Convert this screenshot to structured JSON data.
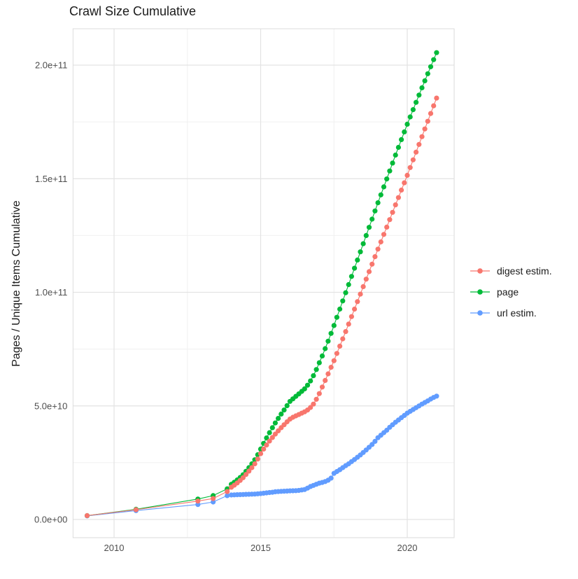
{
  "page": {
    "title": "Crawl Size Cumulative"
  },
  "chart_data": {
    "type": "line",
    "title": "Crawl Size Cumulative",
    "xlabel": "",
    "ylabel": "Pages / Unique Items Cumulative",
    "grid": true,
    "legend_position": "right",
    "xlim": [
      2008.6,
      2021.6
    ],
    "ylim_e9": [
      -8,
      216
    ],
    "x_ticks": [
      {
        "v": 2010,
        "label": "2010"
      },
      {
        "v": 2015,
        "label": "2015"
      },
      {
        "v": 2020,
        "label": "2020"
      }
    ],
    "x_minor": [
      2012.5,
      2017.5
    ],
    "y_ticks": [
      {
        "v_e9": 0,
        "label": "0.0e+00"
      },
      {
        "v_e9": 50,
        "label": "5.0e+10"
      },
      {
        "v_e9": 100,
        "label": "1.0e+11"
      },
      {
        "v_e9": 150,
        "label": "1.5e+11"
      },
      {
        "v_e9": 200,
        "label": "2.0e+11"
      }
    ],
    "y_minor_e9": [
      25,
      75,
      125,
      175
    ],
    "colors": {
      "digest": "#F8766D",
      "page": "#00BA38",
      "url": "#619CFF",
      "grid_major": "#E3E3E3",
      "grid_minor": "#F0F0F0",
      "panel_border": "#DCDCDC"
    },
    "draw_order": [
      2,
      1,
      0
    ],
    "series": [
      {
        "name": "digest estim.",
        "color": "#F8766D",
        "points_e9": [
          [
            2009.08,
            1.7
          ],
          [
            2010.75,
            4.3
          ],
          [
            2012.86,
            8.1
          ],
          [
            2013.38,
            9.2
          ],
          [
            2013.86,
            12.3
          ],
          [
            2014.0,
            14.2
          ],
          [
            2014.1,
            15.1
          ],
          [
            2014.2,
            16.1
          ],
          [
            2014.3,
            17.2
          ],
          [
            2014.4,
            18.4
          ],
          [
            2014.5,
            19.8
          ],
          [
            2014.6,
            21.3
          ],
          [
            2014.7,
            22.8
          ],
          [
            2014.8,
            24.5
          ],
          [
            2014.9,
            26.6
          ],
          [
            2015.0,
            29.0
          ],
          [
            2015.1,
            31.0
          ],
          [
            2015.2,
            32.8
          ],
          [
            2015.3,
            34.5
          ],
          [
            2015.4,
            36.1
          ],
          [
            2015.5,
            37.6
          ],
          [
            2015.6,
            39.0
          ],
          [
            2015.7,
            40.4
          ],
          [
            2015.8,
            41.7
          ],
          [
            2015.9,
            43.0
          ],
          [
            2016.0,
            44.2
          ],
          [
            2016.1,
            45.0
          ],
          [
            2016.2,
            45.6
          ],
          [
            2016.3,
            46.2
          ],
          [
            2016.4,
            46.8
          ],
          [
            2016.5,
            47.4
          ],
          [
            2016.6,
            48.2
          ],
          [
            2016.7,
            49.3
          ],
          [
            2016.8,
            50.8
          ],
          [
            2016.9,
            52.9
          ],
          [
            2017.0,
            55.4
          ],
          [
            2017.1,
            58.3
          ],
          [
            2017.2,
            61.2
          ],
          [
            2017.3,
            64.1
          ],
          [
            2017.4,
            67.0
          ],
          [
            2017.5,
            69.9
          ],
          [
            2017.6,
            73.1
          ],
          [
            2017.7,
            76.3
          ],
          [
            2017.8,
            79.5
          ],
          [
            2017.9,
            82.7
          ],
          [
            2018.0,
            86.0
          ],
          [
            2018.1,
            89.3
          ],
          [
            2018.2,
            92.6
          ],
          [
            2018.3,
            95.9
          ],
          [
            2018.4,
            99.2
          ],
          [
            2018.5,
            102.5
          ],
          [
            2018.6,
            105.8
          ],
          [
            2018.7,
            109.1
          ],
          [
            2018.8,
            112.4
          ],
          [
            2018.9,
            115.7
          ],
          [
            2019.0,
            119.0
          ],
          [
            2019.1,
            122.2
          ],
          [
            2019.2,
            125.5
          ],
          [
            2019.3,
            128.7
          ],
          [
            2019.4,
            132.0
          ],
          [
            2019.5,
            135.2
          ],
          [
            2019.6,
            138.5
          ],
          [
            2019.7,
            141.7
          ],
          [
            2019.8,
            145.0
          ],
          [
            2019.9,
            148.2
          ],
          [
            2020.0,
            151.5
          ],
          [
            2020.1,
            154.9
          ],
          [
            2020.2,
            158.3
          ],
          [
            2020.3,
            161.7
          ],
          [
            2020.4,
            165.1
          ],
          [
            2020.5,
            168.5
          ],
          [
            2020.6,
            171.9
          ],
          [
            2020.7,
            175.3
          ],
          [
            2020.8,
            178.7
          ],
          [
            2020.9,
            182.1
          ],
          [
            2021.0,
            185.5
          ]
        ]
      },
      {
        "name": "page",
        "color": "#00BA38",
        "points_e9": [
          [
            2009.08,
            1.7
          ],
          [
            2010.75,
            4.5
          ],
          [
            2012.86,
            9.0
          ],
          [
            2013.38,
            10.5
          ],
          [
            2013.86,
            13.5
          ],
          [
            2014.0,
            15.5
          ],
          [
            2014.1,
            16.4
          ],
          [
            2014.2,
            17.4
          ],
          [
            2014.3,
            18.5
          ],
          [
            2014.4,
            19.7
          ],
          [
            2014.5,
            21.2
          ],
          [
            2014.6,
            22.8
          ],
          [
            2014.7,
            24.5
          ],
          [
            2014.8,
            26.3
          ],
          [
            2014.9,
            28.5
          ],
          [
            2015.0,
            31.0
          ],
          [
            2015.1,
            33.5
          ],
          [
            2015.2,
            35.9
          ],
          [
            2015.3,
            38.2
          ],
          [
            2015.4,
            40.4
          ],
          [
            2015.5,
            42.5
          ],
          [
            2015.6,
            44.5
          ],
          [
            2015.7,
            46.4
          ],
          [
            2015.8,
            48.2
          ],
          [
            2015.9,
            50.1
          ],
          [
            2016.0,
            52.0
          ],
          [
            2016.1,
            53.1
          ],
          [
            2016.2,
            54.2
          ],
          [
            2016.3,
            55.3
          ],
          [
            2016.4,
            56.4
          ],
          [
            2016.5,
            57.5
          ],
          [
            2016.6,
            59.1
          ],
          [
            2016.7,
            61.0
          ],
          [
            2016.8,
            63.3
          ],
          [
            2016.9,
            66.0
          ],
          [
            2017.0,
            69.0
          ],
          [
            2017.1,
            72.0
          ],
          [
            2017.2,
            75.2
          ],
          [
            2017.3,
            78.5
          ],
          [
            2017.4,
            81.9
          ],
          [
            2017.5,
            85.4
          ],
          [
            2017.6,
            89.0
          ],
          [
            2017.7,
            92.6
          ],
          [
            2017.8,
            96.2
          ],
          [
            2017.9,
            99.8
          ],
          [
            2018.0,
            103.4
          ],
          [
            2018.1,
            107.0
          ],
          [
            2018.2,
            110.6
          ],
          [
            2018.3,
            114.2
          ],
          [
            2018.4,
            117.8
          ],
          [
            2018.5,
            121.4
          ],
          [
            2018.6,
            125.0
          ],
          [
            2018.7,
            128.6
          ],
          [
            2018.8,
            132.2
          ],
          [
            2018.9,
            135.8
          ],
          [
            2019.0,
            139.4
          ],
          [
            2019.1,
            142.9
          ],
          [
            2019.2,
            146.4
          ],
          [
            2019.3,
            149.9
          ],
          [
            2019.4,
            153.4
          ],
          [
            2019.5,
            156.9
          ],
          [
            2019.6,
            160.4
          ],
          [
            2019.7,
            163.8
          ],
          [
            2019.8,
            167.2
          ],
          [
            2019.9,
            170.6
          ],
          [
            2020.0,
            174.0
          ],
          [
            2020.1,
            177.2
          ],
          [
            2020.2,
            180.4
          ],
          [
            2020.3,
            183.6
          ],
          [
            2020.4,
            186.8
          ],
          [
            2020.5,
            190.0
          ],
          [
            2020.6,
            193.1
          ],
          [
            2020.7,
            196.2
          ],
          [
            2020.8,
            199.3
          ],
          [
            2020.9,
            202.4
          ],
          [
            2021.0,
            205.5
          ]
        ]
      },
      {
        "name": "url estim.",
        "color": "#619CFF",
        "points_e9": [
          [
            2009.08,
            1.6
          ],
          [
            2010.75,
            3.9
          ],
          [
            2012.86,
            6.6
          ],
          [
            2013.38,
            7.7
          ],
          [
            2013.86,
            10.5
          ],
          [
            2014.0,
            10.8
          ],
          [
            2014.1,
            10.85
          ],
          [
            2014.2,
            10.9
          ],
          [
            2014.3,
            10.95
          ],
          [
            2014.4,
            11.0
          ],
          [
            2014.5,
            11.05
          ],
          [
            2014.6,
            11.1
          ],
          [
            2014.7,
            11.15
          ],
          [
            2014.8,
            11.2
          ],
          [
            2014.9,
            11.3
          ],
          [
            2015.0,
            11.4
          ],
          [
            2015.1,
            11.55
          ],
          [
            2015.2,
            11.7
          ],
          [
            2015.3,
            11.85
          ],
          [
            2015.4,
            12.0
          ],
          [
            2015.5,
            12.2
          ],
          [
            2015.6,
            12.3
          ],
          [
            2015.7,
            12.4
          ],
          [
            2015.8,
            12.45
          ],
          [
            2015.9,
            12.5
          ],
          [
            2016.0,
            12.6
          ],
          [
            2016.1,
            12.65
          ],
          [
            2016.2,
            12.7
          ],
          [
            2016.3,
            12.8
          ],
          [
            2016.4,
            13.0
          ],
          [
            2016.5,
            13.2
          ],
          [
            2016.6,
            13.8
          ],
          [
            2016.7,
            14.5
          ],
          [
            2016.8,
            15.0
          ],
          [
            2016.9,
            15.5
          ],
          [
            2017.0,
            16.0
          ],
          [
            2017.1,
            16.3
          ],
          [
            2017.2,
            16.7
          ],
          [
            2017.3,
            17.3
          ],
          [
            2017.4,
            18.2
          ],
          [
            2017.5,
            20.3
          ],
          [
            2017.6,
            21.1
          ],
          [
            2017.7,
            21.9
          ],
          [
            2017.8,
            22.8
          ],
          [
            2017.9,
            23.7
          ],
          [
            2018.0,
            24.5
          ],
          [
            2018.1,
            25.5
          ],
          [
            2018.2,
            26.4
          ],
          [
            2018.3,
            27.4
          ],
          [
            2018.4,
            28.4
          ],
          [
            2018.5,
            29.5
          ],
          [
            2018.6,
            30.6
          ],
          [
            2018.7,
            31.8
          ],
          [
            2018.8,
            33.0
          ],
          [
            2018.9,
            34.4
          ],
          [
            2019.0,
            36.0
          ],
          [
            2019.1,
            37.1
          ],
          [
            2019.2,
            38.2
          ],
          [
            2019.3,
            39.3
          ],
          [
            2019.4,
            40.6
          ],
          [
            2019.5,
            41.7
          ],
          [
            2019.6,
            42.8
          ],
          [
            2019.7,
            43.8
          ],
          [
            2019.8,
            44.8
          ],
          [
            2019.9,
            45.8
          ],
          [
            2020.0,
            46.8
          ],
          [
            2020.1,
            47.6
          ],
          [
            2020.2,
            48.4
          ],
          [
            2020.3,
            49.2
          ],
          [
            2020.4,
            50.0
          ],
          [
            2020.5,
            50.8
          ],
          [
            2020.6,
            51.5
          ],
          [
            2020.7,
            52.2
          ],
          [
            2020.8,
            53.0
          ],
          [
            2020.9,
            53.7
          ],
          [
            2021.0,
            54.3
          ]
        ]
      }
    ]
  }
}
